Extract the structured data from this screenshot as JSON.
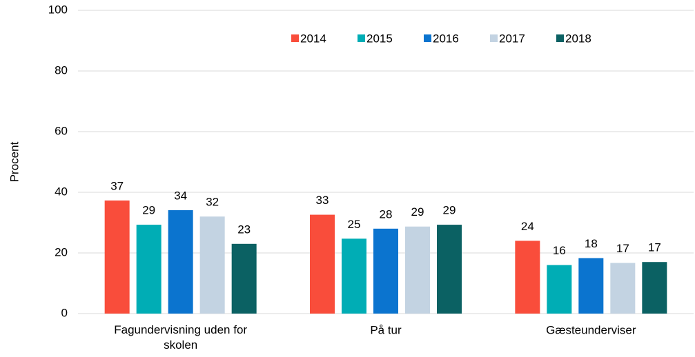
{
  "chart_data": {
    "type": "bar",
    "ylabel": "Procent",
    "categories": [
      "Fagundervisning uden for skolen",
      "På tur",
      "Gæsteunderviser"
    ],
    "series": [
      {
        "name": "2014",
        "color": "#f94d3b",
        "values": [
          37.3,
          32.6,
          24
        ],
        "value_labels": [
          "37",
          "33",
          "24"
        ]
      },
      {
        "name": "2015",
        "color": "#00adb5",
        "values": [
          29.3,
          24.7,
          16
        ],
        "value_labels": [
          "29",
          "25",
          "16"
        ]
      },
      {
        "name": "2016",
        "color": "#0b74cf",
        "values": [
          34.1,
          28,
          18.3
        ],
        "value_labels": [
          "34",
          "28",
          "18"
        ]
      },
      {
        "name": "2017",
        "color": "#c3d3e2",
        "values": [
          32,
          28.7,
          16.7
        ],
        "value_labels": [
          "32",
          "29",
          "17"
        ]
      },
      {
        "name": "2018",
        "color": "#0b6163",
        "values": [
          23,
          29.3,
          17
        ],
        "value_labels": [
          "23",
          "29",
          "17"
        ]
      }
    ],
    "ylim": [
      0,
      100
    ],
    "yticks": [
      0,
      20,
      40,
      60,
      80,
      100
    ],
    "grid": true,
    "legend": "top"
  }
}
